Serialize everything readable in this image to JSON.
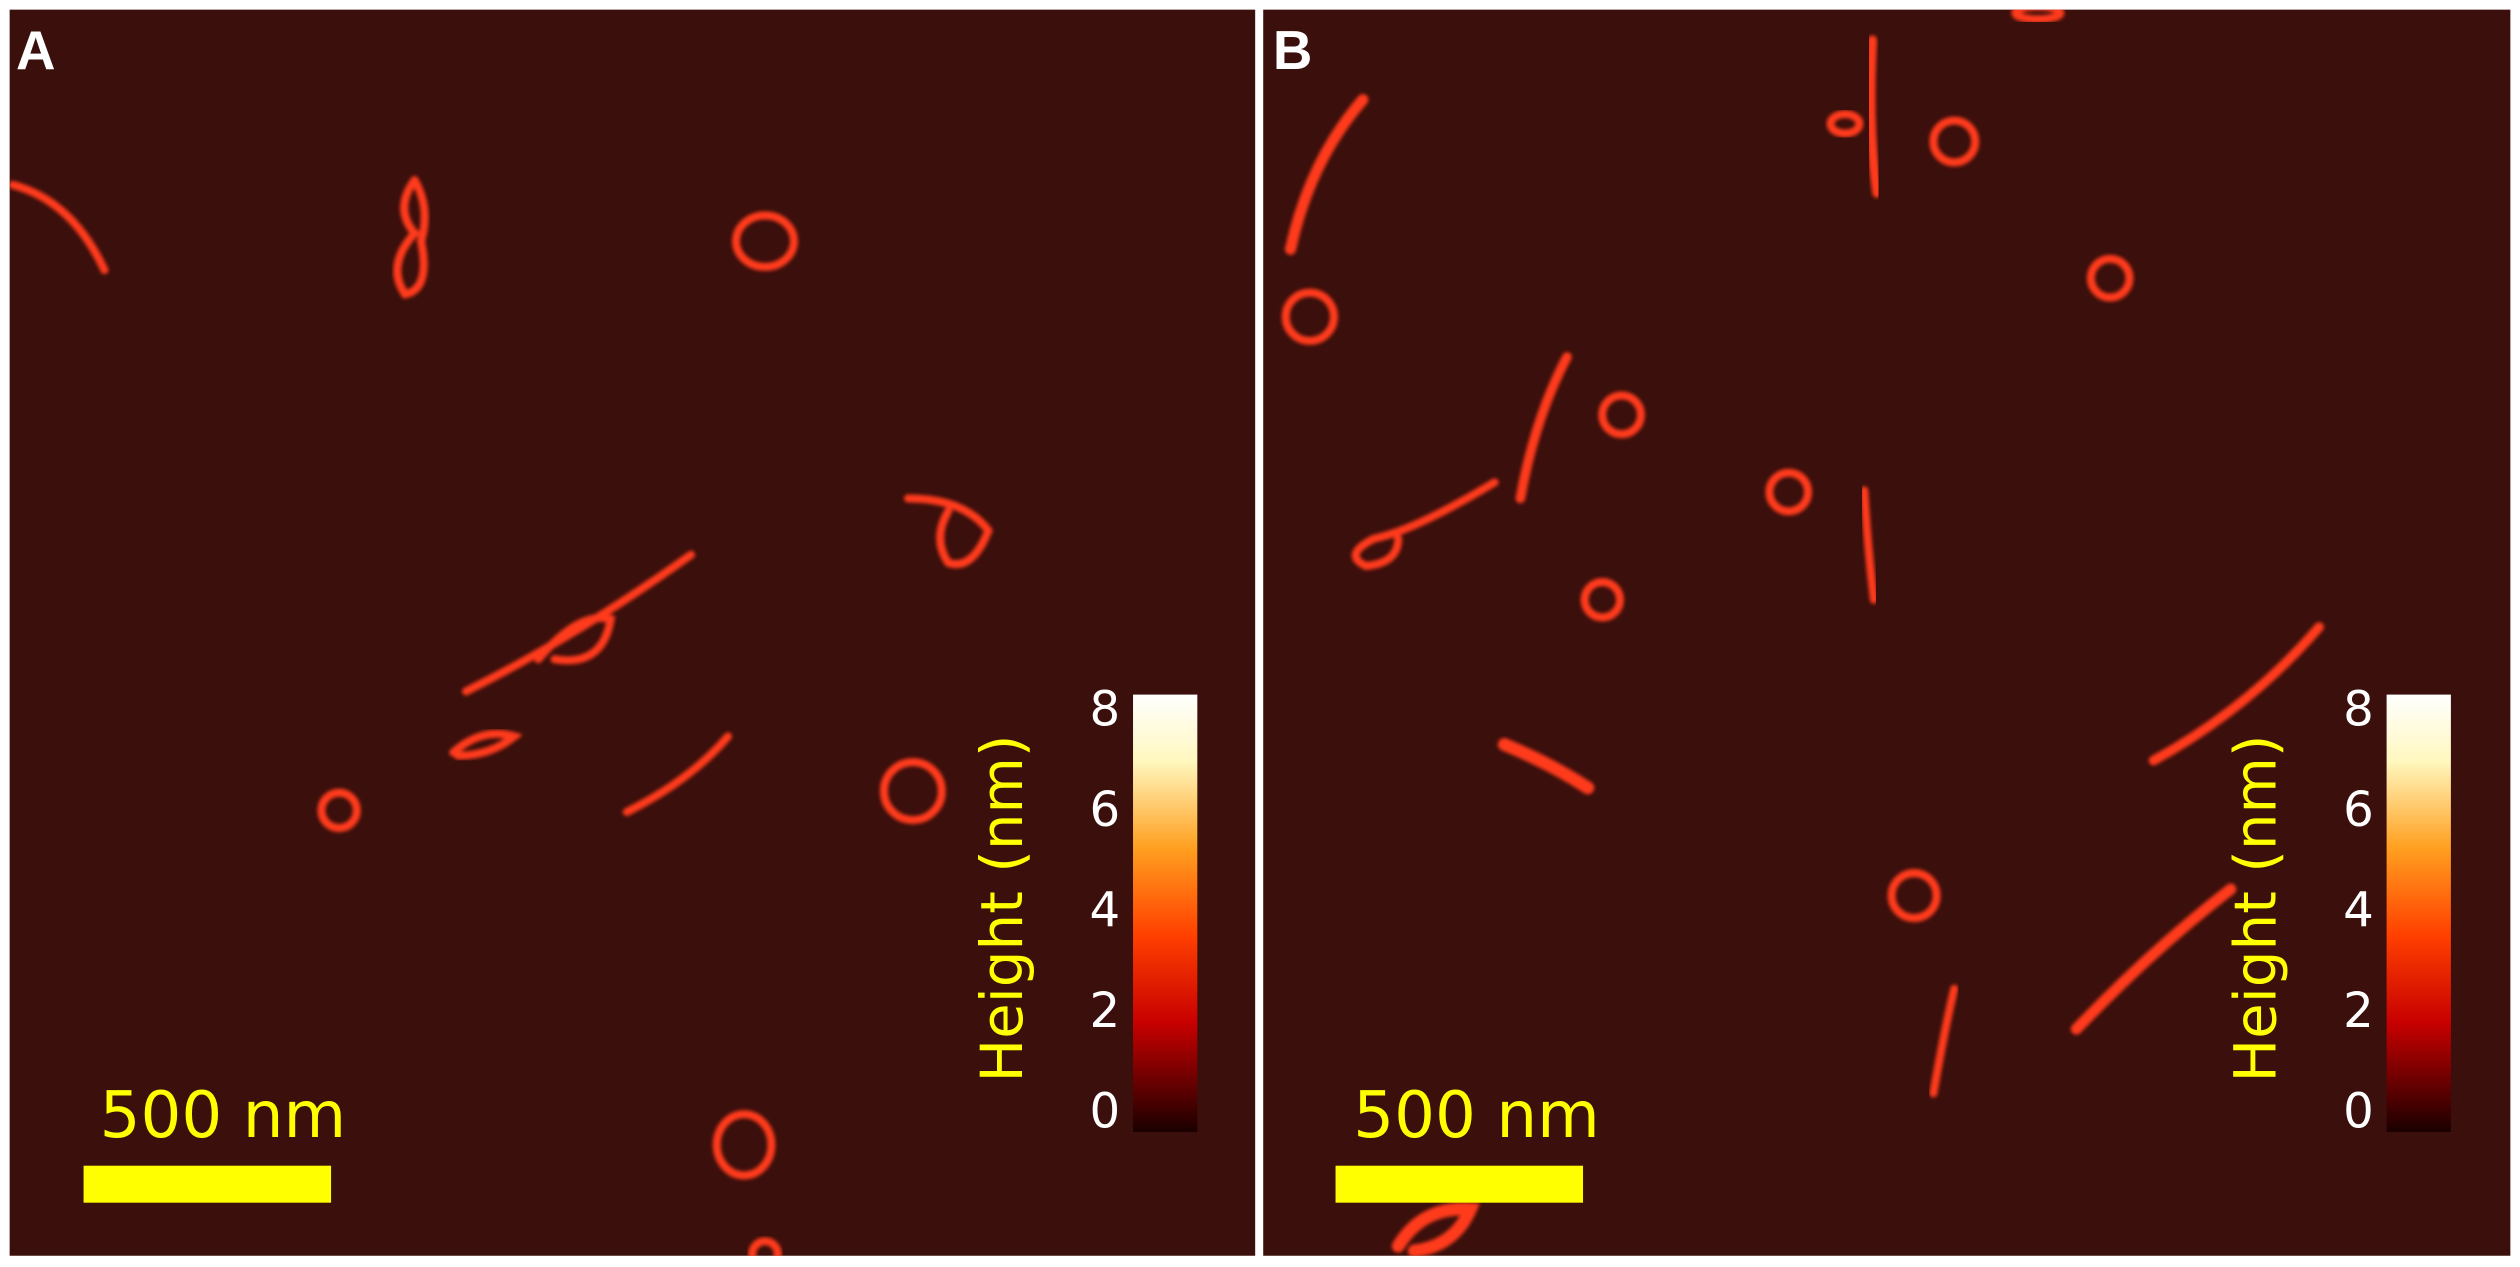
{
  "panels": [
    {
      "label": "A",
      "scale_bar": "500 nm",
      "colorbar": {
        "label": "Height (nm)",
        "ticks": [
          0,
          2,
          4,
          6,
          8
        ]
      }
    },
    {
      "label": "B",
      "scale_bar": "500 nm",
      "colorbar": {
        "label": "Height (nm)",
        "ticks": [
          0,
          2,
          4,
          6,
          8
        ]
      }
    }
  ]
}
